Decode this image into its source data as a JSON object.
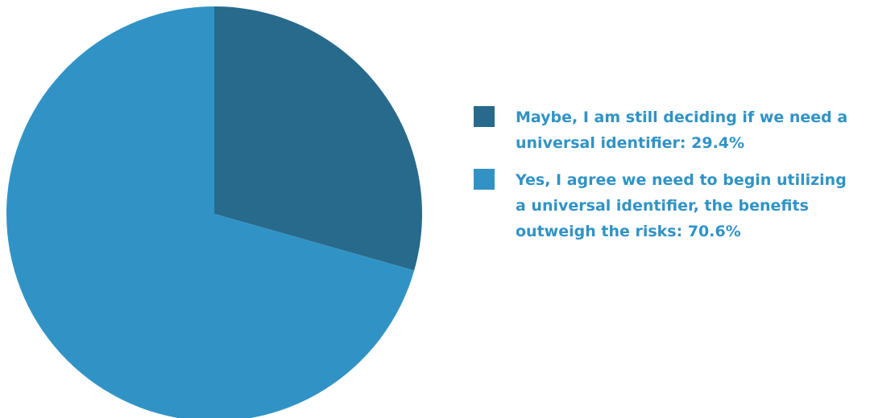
{
  "chart_data": {
    "type": "pie",
    "title": "",
    "legend_position": "right",
    "slices": [
      {
        "label": "Maybe, I am still deciding if we need a universal identifier",
        "legend_text": "Maybe, I am still deciding if we need a universal identifier: 29.4%",
        "value": 29.4,
        "color": "#276a8c"
      },
      {
        "label": "Yes, I agree we need to begin utilizing a universal identifier, the benefits outweigh the risks",
        "legend_text": "Yes, I agree we need to begin utilizing a universal identifier, the benefits outweigh the risks: 70.6%",
        "value": 70.6,
        "color": "#3193c5"
      }
    ]
  }
}
